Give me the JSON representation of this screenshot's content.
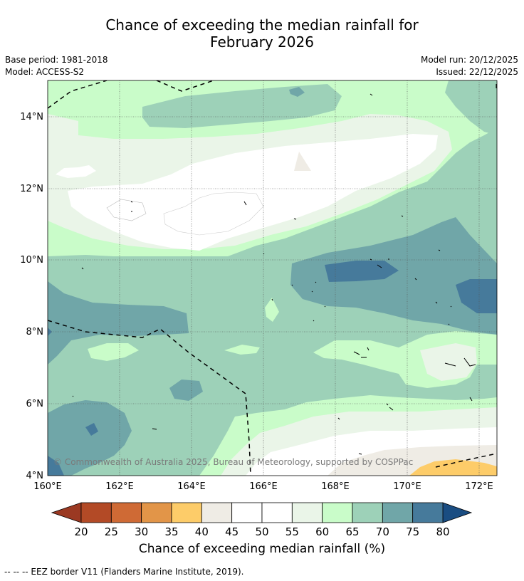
{
  "title": {
    "line1": "Chance of exceeding the median rainfall for",
    "line2": "February 2026"
  },
  "meta": {
    "base_period": "Base period: 1981-2018",
    "model": "Model: ACCESS-S2",
    "model_run": "Model run: 20/12/2025",
    "issued": "Issued: 22/12/2025"
  },
  "map": {
    "lat_ticks": [
      {
        "value": 14,
        "label": "14°N"
      },
      {
        "value": 12,
        "label": "12°N"
      },
      {
        "value": 10,
        "label": "10°N"
      },
      {
        "value": 8,
        "label": "8°N"
      },
      {
        "value": 6,
        "label": "6°N"
      },
      {
        "value": 4,
        "label": "4°N"
      }
    ],
    "lon_ticks": [
      {
        "value": 160,
        "label": "160°E"
      },
      {
        "value": 162,
        "label": "162°E"
      },
      {
        "value": 164,
        "label": "164°E"
      },
      {
        "value": 166,
        "label": "166°E"
      },
      {
        "value": 168,
        "label": "168°E"
      },
      {
        "value": 170,
        "label": "170°E"
      },
      {
        "value": 172,
        "label": "172°E"
      }
    ],
    "extent": {
      "lon_min": 160,
      "lon_max": 172.5,
      "lat_min": 4,
      "lat_max": 15
    },
    "copyright": "© Commonwealth of Australia 2025, Bureau of Meteorology, supported by COSPPac"
  },
  "colorbar": {
    "ticks": [
      "20",
      "25",
      "30",
      "35",
      "40",
      "45",
      "50",
      "55",
      "60",
      "65",
      "70",
      "75",
      "80"
    ],
    "colors": [
      "#b34a26",
      "#cf6a35",
      "#e29548",
      "#fdcc69",
      "#efece5",
      "#ffffff",
      "#ffffff",
      "#eaf5e8",
      "#c9fcc9",
      "#9dd1b8",
      "#70a6a8",
      "#467a9b"
    ],
    "under_color": "#9b3922",
    "over_color": "#1a4d82",
    "title": "Chance of exceeding median rainfall (%)"
  },
  "footnote": "--  --  -- EEZ border V11 (Flanders Marine Institute, 2019)."
}
